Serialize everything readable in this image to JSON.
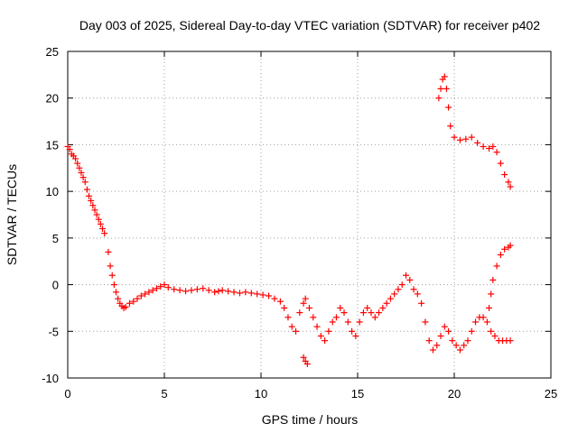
{
  "chart_data": {
    "type": "scatter",
    "title": "Day 003 of 2025, Sidereal Day-to-day VTEC variation (SDTVAR) for receiver p402",
    "xlabel": "GPS time / hours",
    "ylabel": "SDTVAR / TECUs",
    "xlim": [
      0,
      25
    ],
    "ylim": [
      -10,
      25
    ],
    "xticks": [
      0,
      5,
      10,
      15,
      20,
      25
    ],
    "yticks": [
      -10,
      -5,
      0,
      5,
      10,
      15,
      20,
      25
    ],
    "grid": true,
    "marker": "+",
    "color": "#ff0000",
    "series": [
      {
        "name": "SDTVAR",
        "x": [
          0.0,
          0.1,
          0.2,
          0.3,
          0.4,
          0.5,
          0.6,
          0.7,
          0.8,
          0.9,
          1.0,
          1.1,
          1.2,
          1.3,
          1.4,
          1.5,
          1.6,
          1.7,
          1.8,
          1.9,
          2.1,
          2.2,
          2.3,
          2.4,
          2.5,
          2.6,
          2.7,
          2.8,
          2.9,
          3.0,
          3.2,
          3.4,
          3.6,
          3.8,
          4.0,
          4.2,
          4.4,
          4.6,
          4.8,
          5.0,
          5.2,
          5.5,
          5.8,
          6.1,
          6.4,
          6.7,
          7.0,
          7.3,
          7.6,
          7.8,
          8.0,
          8.3,
          8.6,
          8.9,
          9.2,
          9.5,
          9.8,
          10.1,
          10.4,
          10.7,
          11.0,
          11.2,
          11.4,
          11.6,
          11.8,
          12.0,
          12.2,
          12.3,
          12.5,
          12.7,
          12.9,
          13.1,
          13.3,
          13.5,
          13.7,
          13.9,
          14.1,
          14.3,
          14.5,
          14.7,
          14.9,
          15.1,
          15.3,
          15.5,
          15.7,
          15.9,
          16.1,
          16.3,
          16.5,
          16.7,
          16.9,
          17.1,
          17.3,
          17.5,
          17.7,
          17.9,
          18.1,
          18.3,
          18.5,
          18.7,
          18.9,
          19.1,
          19.3,
          19.5,
          19.7,
          19.9,
          20.1,
          20.3,
          20.5,
          20.7,
          20.9,
          21.1,
          21.3,
          21.5,
          21.7,
          21.9,
          22.1,
          22.3,
          22.5,
          22.7,
          22.9,
          19.2,
          19.3,
          19.4,
          19.5,
          19.6,
          19.7,
          19.8,
          20.0,
          20.3,
          20.6,
          20.9,
          21.2,
          21.5,
          21.8,
          22.0,
          22.2,
          22.4,
          22.6,
          22.8,
          22.9,
          21.8,
          21.9,
          22.0,
          22.2,
          22.4,
          22.6,
          22.8,
          22.9,
          12.2,
          12.3,
          12.4
        ],
        "y": [
          14.8,
          14.5,
          14.0,
          13.8,
          13.5,
          13.0,
          12.5,
          12.0,
          11.5,
          11.0,
          10.2,
          9.5,
          9.0,
          8.5,
          8.0,
          7.5,
          7.0,
          6.5,
          6.0,
          5.5,
          3.5,
          2.0,
          1.0,
          0.0,
          -0.8,
          -1.5,
          -2.0,
          -2.3,
          -2.5,
          -2.4,
          -2.0,
          -1.8,
          -1.5,
          -1.2,
          -1.0,
          -0.8,
          -0.6,
          -0.4,
          -0.2,
          0.0,
          -0.3,
          -0.5,
          -0.6,
          -0.7,
          -0.6,
          -0.5,
          -0.4,
          -0.6,
          -0.8,
          -0.7,
          -0.6,
          -0.7,
          -0.8,
          -0.9,
          -0.8,
          -0.9,
          -1.0,
          -1.1,
          -1.2,
          -1.5,
          -1.8,
          -2.5,
          -3.5,
          -4.5,
          -5.0,
          -3.0,
          -2.0,
          -1.5,
          -2.5,
          -3.5,
          -4.5,
          -5.5,
          -6.0,
          -5.0,
          -4.0,
          -3.5,
          -2.5,
          -3.0,
          -4.0,
          -5.0,
          -5.5,
          -4.0,
          -3.0,
          -2.5,
          -3.0,
          -3.5,
          -3.0,
          -2.5,
          -2.0,
          -1.5,
          -1.0,
          -0.5,
          0.0,
          1.0,
          0.5,
          -0.5,
          -1.0,
          -2.0,
          -4.0,
          -6.0,
          -7.0,
          -6.5,
          -5.5,
          -4.5,
          -5.0,
          -6.0,
          -6.5,
          -7.0,
          -6.5,
          -6.0,
          -5.0,
          -4.0,
          -3.5,
          -3.5,
          -4.0,
          -5.0,
          -5.5,
          -6.0,
          -6.0,
          -6.0,
          -6.0,
          20.0,
          21.0,
          22.0,
          22.3,
          21.0,
          19.0,
          17.0,
          15.8,
          15.5,
          15.6,
          15.8,
          15.2,
          14.8,
          14.6,
          14.8,
          14.2,
          13.0,
          11.8,
          11.0,
          10.5,
          -2.5,
          -1.0,
          0.5,
          2.0,
          3.2,
          3.8,
          4.0,
          4.2,
          -7.8,
          -8.2,
          -8.5
        ]
      }
    ]
  }
}
